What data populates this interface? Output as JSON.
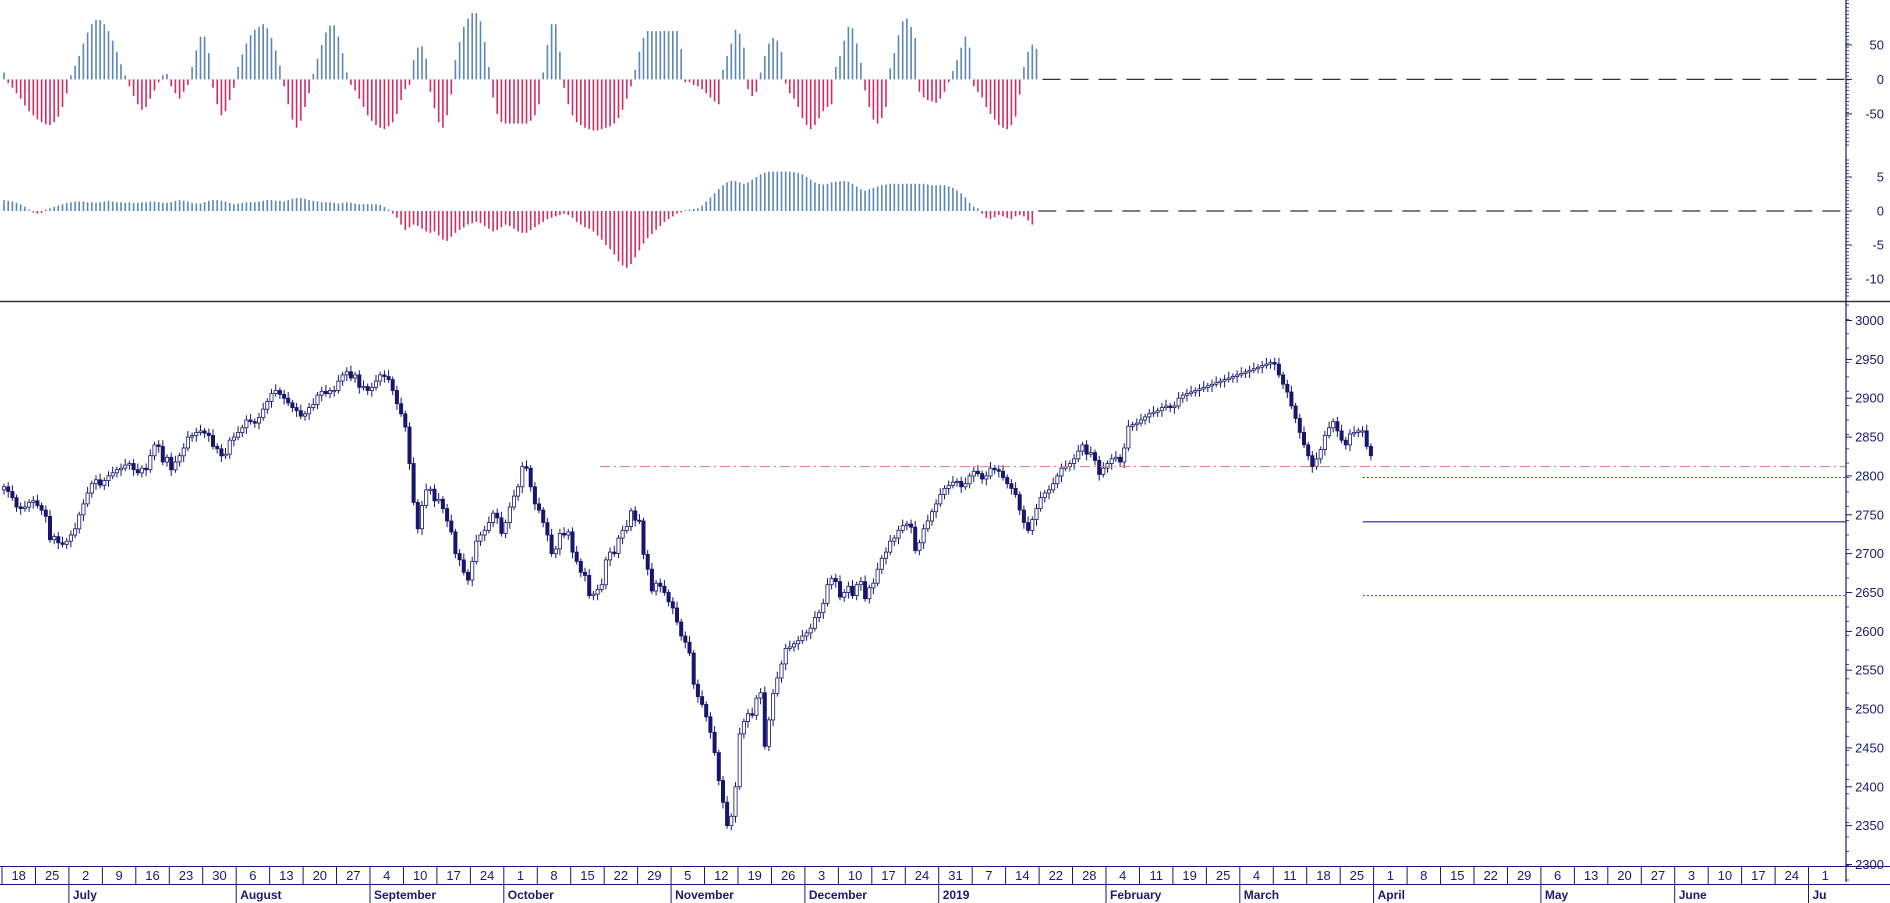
{
  "chart_data": [
    {
      "type": "bar",
      "panel": "oscillator-1",
      "ylim": [
        -95,
        115
      ],
      "ticks": [
        "50",
        "0",
        "-50"
      ],
      "tick_values": [
        50,
        0,
        -50
      ],
      "colors": {
        "positive": "#5b86b8",
        "negative": "#d42a5e"
      },
      "values": [
        10,
        -5,
        -12,
        -20,
        -28,
        -38,
        -46,
        -52,
        -58,
        -62,
        -65,
        -66,
        -62,
        -54,
        -40,
        -20,
        6,
        20,
        34,
        52,
        68,
        80,
        86,
        86,
        80,
        70,
        56,
        40,
        22,
        6,
        -10,
        -24,
        -36,
        -44,
        -40,
        -28,
        -16,
        -4,
        6,
        8,
        -10,
        -20,
        -28,
        -18,
        -8,
        18,
        42,
        62,
        62,
        38,
        -12,
        -36,
        -52,
        -46,
        -30,
        -12,
        18,
        36,
        52,
        64,
        72,
        76,
        80,
        74,
        60,
        42,
        20,
        -10,
        -36,
        -58,
        -70,
        -60,
        -40,
        -20,
        8,
        30,
        50,
        68,
        78,
        78,
        62,
        38,
        10,
        -8,
        -16,
        -28,
        -40,
        -52,
        -60,
        -66,
        -70,
        -72,
        -68,
        -62,
        -50,
        -30,
        -14,
        -8,
        28,
        46,
        48,
        30,
        -18,
        -42,
        -62,
        -70,
        -52,
        -22,
        28,
        54,
        76,
        88,
        96,
        96,
        84,
        54,
        18,
        -26,
        -50,
        -62,
        -64,
        -64,
        -64,
        -64,
        -64,
        -64,
        -60,
        -52,
        -36,
        10,
        50,
        80,
        80,
        40,
        -12,
        -36,
        -52,
        -62,
        -66,
        -70,
        -72,
        -74,
        -74,
        -72,
        -70,
        -68,
        -64,
        -56,
        -44,
        -28,
        -10,
        14,
        40,
        60,
        70,
        70,
        70,
        70,
        70,
        70,
        70,
        70,
        44,
        -4,
        -4,
        -8,
        -10,
        -14,
        -20,
        -26,
        -32,
        -36,
        14,
        34,
        52,
        72,
        66,
        46,
        -14,
        -24,
        -18,
        10,
        34,
        52,
        60,
        56,
        40,
        -6,
        -20,
        -28,
        -40,
        -56,
        -66,
        -72,
        -66,
        -56,
        -46,
        -40,
        -36,
        18,
        34,
        56,
        76,
        74,
        52,
        24,
        -16,
        -40,
        -58,
        -64,
        -56,
        -40,
        16,
        38,
        64,
        84,
        88,
        76,
        60,
        -18,
        -26,
        -30,
        -32,
        -34,
        -28,
        -18,
        -4,
        12,
        28,
        46,
        62,
        46,
        -10,
        -18,
        -26,
        -40,
        -50,
        -58,
        -66,
        -70,
        -72,
        -66,
        -54,
        -22,
        18,
        40,
        50,
        44
      ]
    },
    {
      "type": "bar",
      "panel": "oscillator-2",
      "ylim": [
        -12.5,
        7.5
      ],
      "ticks": [
        "5",
        "0",
        "-5",
        "-10"
      ],
      "tick_values": [
        5,
        0,
        -5,
        -10
      ],
      "colors": {
        "positive": "#5b86b8",
        "negative": "#d42a5e"
      },
      "values": [
        1.6,
        1.5,
        1.4,
        1.2,
        1.0,
        0.6,
        0.2,
        -0.2,
        -0.4,
        -0.3,
        0.2,
        0.4,
        0.6,
        0.8,
        1.0,
        1.2,
        1.3,
        1.4,
        1.4,
        1.4,
        1.3,
        1.3,
        1.2,
        1.3,
        1.4,
        1.5,
        1.4,
        1.3,
        1.3,
        1.2,
        1.3,
        1.2,
        1.2,
        1.3,
        1.3,
        1.4,
        1.4,
        1.3,
        1.2,
        1.2,
        1.3,
        1.5,
        1.6,
        1.5,
        1.4,
        1.2,
        1.1,
        1.1,
        1.3,
        1.5,
        1.6,
        1.6,
        1.5,
        1.4,
        1.2,
        1.0,
        1.1,
        1.2,
        1.3,
        1.3,
        1.3,
        1.4,
        1.5,
        1.6,
        1.6,
        1.5,
        1.5,
        1.4,
        1.6,
        1.8,
        1.9,
        1.9,
        1.8,
        1.6,
        1.5,
        1.4,
        1.3,
        1.3,
        1.3,
        1.2,
        1.1,
        1.2,
        1.3,
        1.2,
        1.1,
        1.0,
        1.0,
        1.0,
        1.0,
        1.0,
        0.9,
        0.6,
        0.2,
        -0.4,
        -1.0,
        -2.0,
        -2.8,
        -2.4,
        -2.0,
        -2.2,
        -2.6,
        -3.0,
        -3.2,
        -3.0,
        -3.6,
        -4.2,
        -4.4,
        -3.8,
        -3.2,
        -2.8,
        -2.4,
        -2.0,
        -1.8,
        -1.6,
        -1.8,
        -2.2,
        -2.6,
        -3.0,
        -2.8,
        -2.4,
        -2.0,
        -2.2,
        -2.6,
        -3.0,
        -3.2,
        -3.2,
        -2.8,
        -2.4,
        -2.0,
        -1.6,
        -1.2,
        -1.0,
        -0.8,
        -0.6,
        -0.4,
        -0.6,
        -1.0,
        -1.6,
        -2.0,
        -2.4,
        -2.6,
        -3.0,
        -3.6,
        -4.2,
        -5.0,
        -5.6,
        -6.4,
        -7.4,
        -8.0,
        -8.4,
        -7.8,
        -6.8,
        -5.8,
        -4.8,
        -4.0,
        -3.4,
        -2.8,
        -2.2,
        -1.6,
        -1.2,
        -0.8,
        -0.4,
        -0.2,
        0.1,
        0.2,
        0.3,
        0.4,
        0.8,
        1.4,
        2.0,
        2.6,
        3.2,
        3.8,
        4.2,
        4.4,
        4.4,
        4.2,
        4.0,
        4.2,
        4.6,
        5.0,
        5.4,
        5.6,
        5.8,
        5.8,
        5.8,
        5.8,
        5.8,
        5.8,
        5.7,
        5.6,
        5.4,
        5.0,
        4.6,
        4.2,
        4.0,
        3.9,
        4.0,
        4.2,
        4.3,
        4.4,
        4.4,
        4.3,
        4.0,
        3.6,
        3.2,
        3.0,
        3.2,
        3.4,
        3.6,
        3.8,
        3.9,
        4.0,
        4.0,
        4.0,
        4.0,
        4.0,
        4.0,
        4.0,
        4.0,
        4.0,
        3.9,
        3.8,
        3.8,
        3.8,
        3.8,
        3.6,
        3.4,
        3.0,
        2.6,
        2.0,
        1.2,
        0.6,
        0.4,
        -0.4,
        -1.0,
        -1.2,
        -0.9,
        -0.6,
        -0.8,
        -1.0,
        -1.2,
        -0.8,
        -0.6,
        -0.8,
        -1.4,
        -2.0
      ]
    },
    {
      "type": "candlestick",
      "panel": "price",
      "ylim": [
        2280,
        3020
      ],
      "ticks": [
        "3000",
        "2950",
        "2900",
        "2850",
        "2800",
        "2750",
        "2700",
        "2650",
        "2600",
        "2550",
        "2500",
        "2450",
        "2400",
        "2350",
        "2300"
      ],
      "tick_values": [
        3000,
        2950,
        2900,
        2850,
        2800,
        2750,
        2700,
        2650,
        2600,
        2550,
        2500,
        2450,
        2400,
        2350,
        2300
      ],
      "colors": {
        "up_fill": "#ffffff",
        "down_fill": "#16166e",
        "stroke": "#16166e"
      },
      "close": [
        2786,
        2780,
        2772,
        2760,
        2758,
        2760,
        2766,
        2768,
        2762,
        2756,
        2748,
        2718,
        2722,
        2714,
        2712,
        2716,
        2724,
        2732,
        2750,
        2764,
        2778,
        2790,
        2795,
        2788,
        2794,
        2800,
        2804,
        2808,
        2810,
        2814,
        2816,
        2808,
        2804,
        2810,
        2808,
        2826,
        2840,
        2838,
        2818,
        2824,
        2808,
        2818,
        2826,
        2836,
        2850,
        2852,
        2856,
        2858,
        2855,
        2852,
        2838,
        2835,
        2826,
        2828,
        2846,
        2850,
        2856,
        2862,
        2872,
        2870,
        2868,
        2875,
        2886,
        2896,
        2906,
        2910,
        2905,
        2900,
        2894,
        2888,
        2884,
        2877,
        2880,
        2888,
        2892,
        2904,
        2909,
        2906,
        2910,
        2910,
        2922,
        2930,
        2934,
        2926,
        2930,
        2914,
        2915,
        2910,
        2914,
        2922,
        2930,
        2928,
        2924,
        2910,
        2893,
        2880,
        2863,
        2816,
        2766,
        2732,
        2762,
        2782,
        2783,
        2768,
        2770,
        2758,
        2742,
        2728,
        2700,
        2692,
        2676,
        2666,
        2690,
        2716,
        2724,
        2730,
        2740,
        2752,
        2746,
        2726,
        2740,
        2760,
        2774,
        2786,
        2812,
        2810,
        2786,
        2764,
        2756,
        2740,
        2724,
        2700,
        2706,
        2726,
        2724,
        2728,
        2702,
        2690,
        2676,
        2672,
        2646,
        2648,
        2654,
        2660,
        2692,
        2702,
        2700,
        2720,
        2730,
        2735,
        2755,
        2743,
        2742,
        2699,
        2680,
        2652,
        2662,
        2658,
        2650,
        2638,
        2630,
        2612,
        2594,
        2586,
        2572,
        2532,
        2516,
        2506,
        2490,
        2470,
        2444,
        2408,
        2380,
        2350,
        2362,
        2400,
        2468,
        2484,
        2494,
        2492,
        2514,
        2521,
        2452,
        2486,
        2520,
        2540,
        2558,
        2578,
        2580,
        2584,
        2588,
        2594,
        2598,
        2604,
        2618,
        2624,
        2636,
        2660,
        2668,
        2664,
        2644,
        2650,
        2658,
        2646,
        2660,
        2664,
        2642,
        2656,
        2662,
        2680,
        2694,
        2702,
        2716,
        2720,
        2730,
        2736,
        2738,
        2734,
        2704,
        2714,
        2732,
        2742,
        2754,
        2764,
        2776,
        2784,
        2788,
        2792,
        2793,
        2786,
        2790,
        2800,
        2806,
        2803,
        2796,
        2800,
        2810,
        2808,
        2806,
        2798,
        2790,
        2784,
        2776,
        2756,
        2740,
        2730,
        2744,
        2758,
        2772,
        2778,
        2782,
        2790,
        2800,
        2810,
        2812,
        2816,
        2822,
        2832,
        2840,
        2828,
        2830,
        2820,
        2802,
        2810,
        2816,
        2822,
        2824,
        2818,
        2836,
        2864,
        2866,
        2868,
        2872,
        2876,
        2880,
        2882,
        2884,
        2888,
        2890,
        2888,
        2890,
        2900,
        2904,
        2906,
        2908,
        2910,
        2912,
        2914,
        2916,
        2918,
        2920,
        2922,
        2924,
        2926,
        2928,
        2930,
        2932,
        2934,
        2936,
        2938,
        2940,
        2942,
        2944,
        2946,
        2944,
        2930,
        2918,
        2908,
        2890,
        2874,
        2856,
        2840,
        2826,
        2812,
        2822,
        2834,
        2852,
        2862,
        2870,
        2858,
        2846,
        2840,
        2854,
        2856,
        2858,
        2858,
        2838,
        2826
      ]
    },
    {
      "type": "line",
      "panel": "price-levels",
      "levels": [
        {
          "value": 2812,
          "style": "dash-dot",
          "color": "#e07080"
        },
        {
          "value": 2798,
          "style": "dotted",
          "color": "#3344cc"
        },
        {
          "value": 2741,
          "style": "solid",
          "color": "#22228a"
        },
        {
          "value": 2646,
          "style": "dotted",
          "color": "#3344cc"
        }
      ]
    }
  ],
  "x_axis": {
    "day_labels": [
      "18",
      "25",
      "2",
      "9",
      "16",
      "23",
      "30",
      "6",
      "13",
      "20",
      "27",
      "4",
      "10",
      "17",
      "24",
      "1",
      "8",
      "15",
      "22",
      "29",
      "5",
      "12",
      "19",
      "26",
      "3",
      "10",
      "17",
      "24",
      "31",
      "7",
      "14",
      "22",
      "28",
      "4",
      "11",
      "19",
      "25",
      "4",
      "11",
      "18",
      "25",
      "1",
      "8",
      "15",
      "22",
      "29",
      "6",
      "13",
      "20",
      "27",
      "3",
      "10",
      "17",
      "24",
      "1"
    ],
    "month_labels": [
      "July",
      "August",
      "September",
      "October",
      "November",
      "December",
      "2019",
      "February",
      "March",
      "April",
      "May",
      "June",
      "Ju"
    ]
  }
}
